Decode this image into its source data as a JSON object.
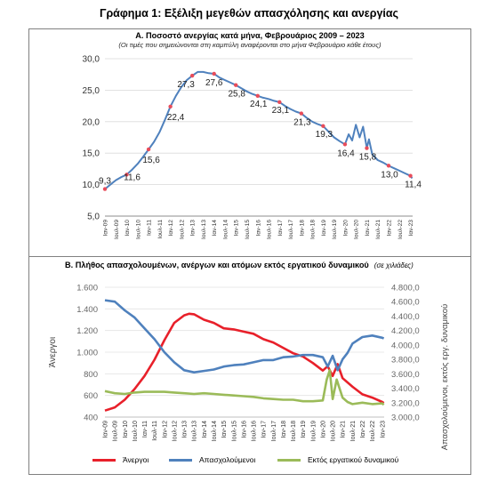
{
  "title": "Γράφημα 1: Εξέλιξη μεγεθών απασχόλησης και ανεργίας",
  "colors": {
    "red": "#e8202a",
    "blue": "#4f81bd",
    "green": "#9bbb59",
    "line_a": "#4f81bd",
    "marker": "#e84c5a"
  },
  "chart_data": [
    {
      "type": "line",
      "title": "Α. Ποσοστό ανεργίας κατά μήνα, Φεβρουάριος 2009 – 2023",
      "subtitle": "(Οι τιμές που σημειώνονται στη καμπύλη αναφέρονται στο μήνα Φεβρουάριο κάθε έτους)",
      "xlabel": "",
      "ylabel": "",
      "ylim": [
        5,
        30
      ],
      "y_ticks": [
        "5,0",
        "10,0",
        "15,0",
        "20,0",
        "25,0",
        "30,0"
      ],
      "x_ticks": [
        "Ιαν-09",
        "Ιαν-10",
        "Ιαν-11",
        "Ιαν-12",
        "Ιαν-13",
        "Ιαν-14",
        "Ιαν-15",
        "Ιαν-16",
        "Ιαν-17",
        "Ιαν-18",
        "Ιαν-19",
        "Ιαν-20",
        "Ιαν-21",
        "Ιαν-22",
        "Ιαν-23"
      ],
      "x_ticks_alt": [
        "Ιουλ-09",
        "Ιουλ-10",
        "Ιουλ-11",
        "Ιουλ-12",
        "Ιουλ-13",
        "Ιουλ-14",
        "Ιουλ-15",
        "Ιουλ-16",
        "Ιουλ-17",
        "Ιουλ-18",
        "Ιουλ-19",
        "Ιουλ-20",
        "Ιουλ-21",
        "Ιουλ-22"
      ],
      "x": [
        2009,
        2009.25,
        2009.5,
        2009.75,
        2010,
        2010.25,
        2010.5,
        2010.75,
        2011,
        2011.25,
        2011.5,
        2011.75,
        2012,
        2012.25,
        2012.5,
        2012.75,
        2013,
        2013.25,
        2013.5,
        2013.75,
        2014,
        2014.25,
        2014.5,
        2014.75,
        2015,
        2015.25,
        2015.5,
        2015.75,
        2016,
        2016.25,
        2016.5,
        2016.75,
        2017,
        2017.25,
        2017.5,
        2017.75,
        2018,
        2018.25,
        2018.5,
        2018.75,
        2019,
        2019.25,
        2019.5,
        2019.75,
        2020,
        2020.17,
        2020.33,
        2020.5,
        2020.67,
        2020.83,
        2021,
        2021.1,
        2021.25,
        2021.5,
        2021.75,
        2022,
        2022.25,
        2022.5,
        2022.75,
        2023,
        2023.08
      ],
      "values": [
        9.3,
        10.0,
        10.7,
        11.2,
        11.6,
        12.4,
        13.3,
        14.4,
        15.6,
        16.8,
        18.3,
        20.3,
        22.4,
        24.1,
        25.5,
        26.6,
        27.3,
        27.9,
        27.9,
        27.7,
        27.6,
        27.0,
        26.6,
        26.2,
        25.8,
        25.3,
        24.8,
        24.4,
        24.1,
        23.8,
        23.6,
        23.3,
        23.1,
        22.5,
        22.0,
        21.6,
        21.3,
        20.6,
        20.0,
        19.6,
        19.3,
        18.4,
        17.5,
        16.9,
        16.4,
        18.0,
        17.0,
        19.5,
        17.5,
        19.2,
        15.8,
        17.2,
        14.8,
        13.9,
        13.5,
        13.0,
        12.6,
        12.2,
        11.8,
        11.4,
        11.0
      ],
      "annotations": [
        {
          "x": 2009,
          "y": 9.3,
          "label": "9,3"
        },
        {
          "x": 2010,
          "y": 11.6,
          "label": "11,6"
        },
        {
          "x": 2011,
          "y": 15.6,
          "label": "15,6"
        },
        {
          "x": 2012,
          "y": 22.4,
          "label": "22,4"
        },
        {
          "x": 2013,
          "y": 27.3,
          "label": "27,3"
        },
        {
          "x": 2014,
          "y": 27.6,
          "label": "27,6"
        },
        {
          "x": 2015,
          "y": 25.8,
          "label": "25,8"
        },
        {
          "x": 2016,
          "y": 24.1,
          "label": "24,1"
        },
        {
          "x": 2017,
          "y": 23.1,
          "label": "23,1"
        },
        {
          "x": 2018,
          "y": 21.3,
          "label": "21,3"
        },
        {
          "x": 2019,
          "y": 19.3,
          "label": "19,3"
        },
        {
          "x": 2020,
          "y": 16.4,
          "label": "16,4"
        },
        {
          "x": 2021,
          "y": 15.8,
          "label": "15,8"
        },
        {
          "x": 2022,
          "y": 13.0,
          "label": "13,0"
        },
        {
          "x": 2023,
          "y": 11.4,
          "label": "11,4"
        }
      ],
      "grid": true
    },
    {
      "type": "line",
      "title": "Β. Πλήθος απασχολουμένων, ανέργων και ατόμων εκτός εργατικού δυναμικού",
      "unit_note": "(σε χιλιάδες)",
      "ylabel": "Άνεργοι",
      "ylabel_right": "Απασχολούμενοι, εκτός εργ. δυναμικού",
      "ylim": [
        400,
        1600
      ],
      "ylim_right": [
        3000,
        4800
      ],
      "y_ticks": [
        "400",
        "600",
        "800",
        "1.000",
        "1.200",
        "1.400",
        "1.600"
      ],
      "y_ticks_right": [
        "3.000,0",
        "3.200,0",
        "3.400,0",
        "3.600,0",
        "3.800,0",
        "4.000,0",
        "4.200,0",
        "4.400,0",
        "4.600,0",
        "4.800,0"
      ],
      "x_ticks": [
        "Ιαν-09",
        "Ιουλ-09",
        "Ιαν-10",
        "Ιουλ-10",
        "Ιαν-11",
        "Ιουλ-11",
        "Ιαν-12",
        "Ιουλ-12",
        "Ιαν-13",
        "Ιουλ-13",
        "Ιαν-14",
        "Ιουλ-14",
        "Ιαν-15",
        "Ιουλ-15",
        "Ιαν-16",
        "Ιουλ-16",
        "Ιαν-17",
        "Ιουλ-17",
        "Ιαν-18",
        "Ιουλ-18",
        "Ιαν-19",
        "Ιουλ-19",
        "Ιαν-20",
        "Ιουλ-20",
        "Ιαν-21",
        "Ιουλ-21",
        "Ιαν-22",
        "Ιουλ-22",
        "Ιαν-23"
      ],
      "series": [
        {
          "name": "Άνεργοι",
          "axis": "left",
          "x": [
            2009,
            2009.5,
            2010,
            2010.5,
            2011,
            2011.5,
            2012,
            2012.5,
            2013,
            2013.25,
            2013.5,
            2014,
            2014.5,
            2015,
            2015.5,
            2016,
            2016.5,
            2017,
            2017.5,
            2018,
            2018.5,
            2019,
            2019.5,
            2020,
            2020.25,
            2020.5,
            2020.75,
            2021,
            2021.5,
            2022,
            2022.5,
            2023,
            2023.08
          ],
          "values": [
            460,
            490,
            560,
            660,
            780,
            930,
            1110,
            1270,
            1340,
            1355,
            1350,
            1300,
            1270,
            1220,
            1210,
            1190,
            1170,
            1120,
            1090,
            1040,
            990,
            960,
            900,
            830,
            870,
            780,
            890,
            760,
            680,
            610,
            580,
            540,
            530
          ]
        },
        {
          "name": "Απασχολούμενοι",
          "axis": "right",
          "x": [
            2009,
            2009.5,
            2010,
            2010.5,
            2011,
            2011.5,
            2012,
            2012.5,
            2013,
            2013.5,
            2014,
            2014.5,
            2015,
            2015.5,
            2016,
            2016.5,
            2017,
            2017.5,
            2018,
            2018.5,
            2019,
            2019.5,
            2020,
            2020.25,
            2020.5,
            2020.75,
            2021,
            2021.25,
            2021.5,
            2022,
            2022.5,
            2023,
            2023.08
          ],
          "values": [
            4620,
            4600,
            4480,
            4380,
            4230,
            4080,
            3900,
            3760,
            3650,
            3620,
            3640,
            3660,
            3700,
            3720,
            3730,
            3760,
            3790,
            3790,
            3830,
            3840,
            3860,
            3860,
            3830,
            3700,
            3850,
            3650,
            3800,
            3890,
            4020,
            4110,
            4130,
            4100,
            4090
          ]
        },
        {
          "name": "Εκτός εργατικού δυναμικού",
          "axis": "right",
          "x": [
            2009,
            2009.5,
            2010,
            2010.5,
            2011,
            2011.5,
            2012,
            2012.5,
            2013,
            2013.5,
            2014,
            2014.5,
            2015,
            2015.5,
            2016,
            2016.5,
            2017,
            2017.5,
            2018,
            2018.5,
            2019,
            2019.5,
            2020,
            2020.2,
            2020.35,
            2020.5,
            2020.7,
            2021,
            2021.25,
            2021.5,
            2022,
            2022.5,
            2023,
            2023.08
          ],
          "values": [
            3360,
            3330,
            3320,
            3340,
            3350,
            3350,
            3350,
            3340,
            3330,
            3320,
            3330,
            3320,
            3310,
            3300,
            3290,
            3280,
            3260,
            3250,
            3240,
            3240,
            3220,
            3220,
            3230,
            3520,
            3650,
            3250,
            3520,
            3270,
            3210,
            3180,
            3200,
            3180,
            3190,
            3170
          ]
        }
      ]
    }
  ]
}
